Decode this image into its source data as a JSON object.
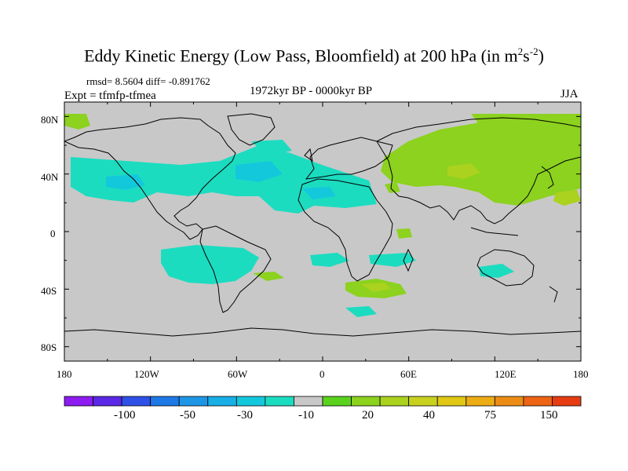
{
  "title": {
    "main": "Eddy Kinetic Energy (Low Pass, Bloomfield) at 200 hPa (in m",
    "sup1": "2",
    "mid": "s",
    "sup2": "-2",
    "end": ")"
  },
  "stats": "rmsd= 8.5604 diff= -0.891762",
  "expt": "Expt = tfmfp-tfmea",
  "period": "1972kyr BP - 0000kyr BP",
  "season": "JJA",
  "map": {
    "y_ticks": [
      "80N",
      "40N",
      "0",
      "40S",
      "80S"
    ],
    "x_ticks": [
      "180",
      "120W",
      "60W",
      "0",
      "60E",
      "120E",
      "180"
    ],
    "background_color": "#c8c8c8"
  },
  "colorbar": {
    "colors": [
      "#8c1cf0",
      "#5a28e6",
      "#2e50e6",
      "#1e78e6",
      "#1e96e6",
      "#18aee6",
      "#14c8dc",
      "#1cdcc0",
      "#c8c8c8",
      "#5ad21e",
      "#8cd21e",
      "#aad21e",
      "#c8d21e",
      "#e0c814",
      "#ecac14",
      "#ec8c14",
      "#ec6414",
      "#e63c14"
    ],
    "labels": [
      "-100",
      "-50",
      "-30",
      "-10",
      "20",
      "40",
      "75",
      "150"
    ]
  }
}
